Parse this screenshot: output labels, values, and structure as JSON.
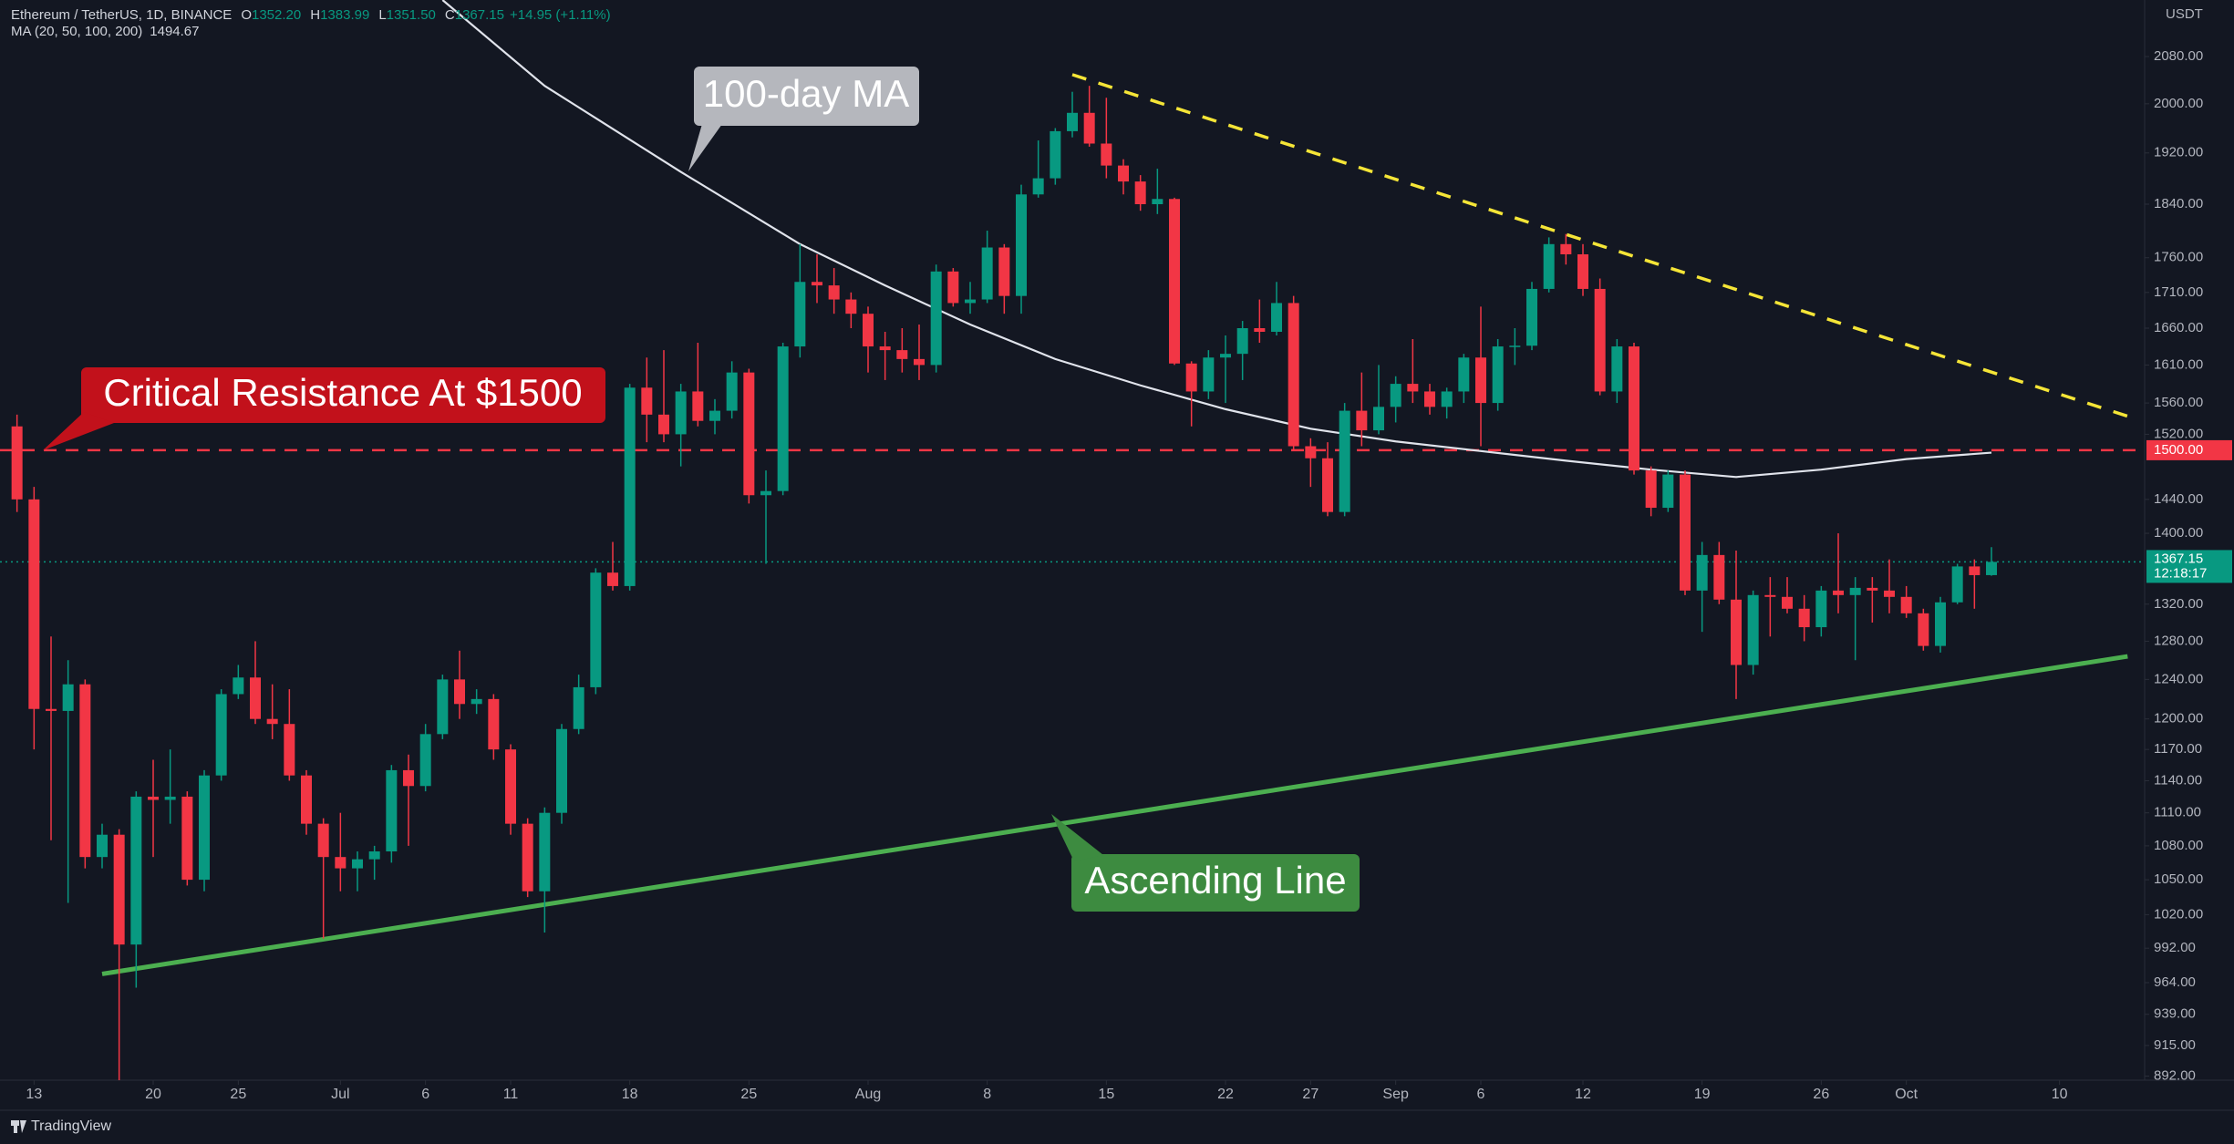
{
  "chart_data": {
    "type": "candlestick",
    "header": {
      "title": "Ethereum / TetherUS, 1D, BINANCE",
      "items": [
        {
          "key": "O",
          "value": "1352.20"
        },
        {
          "key": "H",
          "value": "1383.99"
        },
        {
          "key": "L",
          "value": "1351.50"
        },
        {
          "key": "C",
          "value": "1367.15"
        }
      ],
      "change": "+14.95 (+1.11%)",
      "indicator": "MA (20, 50, 100, 200)",
      "indicator_value": "1494.67"
    },
    "currency": "USDT",
    "footer": "TradingView",
    "up_color": "#089981",
    "down_color": "#f23645",
    "log_scale": true,
    "x": [
      "06-12",
      "06-13",
      "06-14",
      "06-15",
      "06-16",
      "06-17",
      "06-18",
      "06-19",
      "06-20",
      "06-21",
      "06-22",
      "06-23",
      "06-24",
      "06-25",
      "06-26",
      "06-27",
      "06-28",
      "06-29",
      "06-30",
      "07-01",
      "07-02",
      "07-03",
      "07-04",
      "07-05",
      "07-06",
      "07-07",
      "07-08",
      "07-09",
      "07-10",
      "07-11",
      "07-12",
      "07-13",
      "07-14",
      "07-15",
      "07-16",
      "07-17",
      "07-18",
      "07-19",
      "07-20",
      "07-21",
      "07-22",
      "07-23",
      "07-24",
      "07-25",
      "07-26",
      "07-27",
      "07-28",
      "07-29",
      "07-30",
      "07-31",
      "08-01",
      "08-02",
      "08-03",
      "08-04",
      "08-05",
      "08-06",
      "08-07",
      "08-08",
      "08-09",
      "08-10",
      "08-11",
      "08-12",
      "08-13",
      "08-14",
      "08-15",
      "08-16",
      "08-17",
      "08-18",
      "08-19",
      "08-20",
      "08-21",
      "08-22",
      "08-23",
      "08-24",
      "08-25",
      "08-26",
      "08-27",
      "08-28",
      "08-29",
      "08-30",
      "08-31",
      "09-01",
      "09-02",
      "09-03",
      "09-04",
      "09-05",
      "09-06",
      "09-07",
      "09-08",
      "09-09",
      "09-10",
      "09-11",
      "09-12",
      "09-13",
      "09-14",
      "09-15",
      "09-16",
      "09-17",
      "09-18",
      "09-19",
      "09-20",
      "09-21",
      "09-22",
      "09-23",
      "09-24",
      "09-25",
      "09-26",
      "09-27",
      "09-28",
      "09-29",
      "09-30",
      "10-01",
      "10-02",
      "10-03",
      "10-04",
      "10-05",
      "10-06"
    ],
    "open": [
      1530,
      1440,
      1210,
      1208,
      1235,
      1070,
      1090,
      995,
      1125,
      1122,
      1125,
      1050,
      1145,
      1225,
      1242,
      1200,
      1195,
      1145,
      1100,
      1070,
      1060,
      1068,
      1075,
      1150,
      1135,
      1185,
      1240,
      1215,
      1220,
      1170,
      1100,
      1040,
      1110,
      1190,
      1232,
      1355,
      1340,
      1580,
      1545,
      1520,
      1575,
      1537,
      1550,
      1600,
      1445,
      1450,
      1635,
      1725,
      1720,
      1700,
      1680,
      1635,
      1630,
      1618,
      1610,
      1740,
      1695,
      1700,
      1775,
      1705,
      1855,
      1880,
      1955,
      1985,
      1935,
      1900,
      1875,
      1840,
      1848,
      1612,
      1575,
      1620,
      1625,
      1660,
      1655,
      1695,
      1505,
      1490,
      1425,
      1550,
      1525,
      1555,
      1585,
      1575,
      1555,
      1575,
      1620,
      1560,
      1635,
      1636,
      1715,
      1780,
      1765,
      1715,
      1575,
      1635,
      1475,
      1430,
      1470,
      1335,
      1375,
      1325,
      1255,
      1330,
      1328,
      1315,
      1295,
      1335,
      1330,
      1338,
      1335,
      1328,
      1310,
      1275,
      1322,
      1362,
      1352.2
    ],
    "high": [
      1545,
      1455,
      1285,
      1260,
      1240,
      1100,
      1095,
      1130,
      1160,
      1170,
      1130,
      1150,
      1230,
      1255,
      1280,
      1235,
      1230,
      1150,
      1105,
      1110,
      1075,
      1080,
      1155,
      1165,
      1195,
      1245,
      1270,
      1230,
      1225,
      1175,
      1105,
      1115,
      1195,
      1245,
      1360,
      1390,
      1585,
      1620,
      1630,
      1585,
      1640,
      1565,
      1615,
      1605,
      1475,
      1640,
      1780,
      1765,
      1745,
      1710,
      1690,
      1655,
      1660,
      1665,
      1750,
      1745,
      1725,
      1800,
      1780,
      1870,
      1940,
      1960,
      2020,
      2030,
      2010,
      1910,
      1885,
      1895,
      1850,
      1615,
      1630,
      1650,
      1670,
      1700,
      1725,
      1705,
      1515,
      1510,
      1560,
      1600,
      1610,
      1595,
      1645,
      1585,
      1580,
      1625,
      1690,
      1645,
      1660,
      1725,
      1790,
      1795,
      1780,
      1730,
      1645,
      1640,
      1480,
      1475,
      1475,
      1390,
      1390,
      1380,
      1335,
      1350,
      1350,
      1330,
      1340,
      1400,
      1350,
      1350,
      1370,
      1340,
      1315,
      1328,
      1365,
      1370,
      1383.99
    ],
    "low": [
      1425,
      1170,
      1085,
      1030,
      1060,
      1060,
      880,
      960,
      1070,
      1100,
      1045,
      1040,
      1140,
      1220,
      1195,
      1180,
      1140,
      1090,
      1000,
      1040,
      1040,
      1050,
      1065,
      1080,
      1130,
      1180,
      1200,
      1205,
      1160,
      1090,
      1035,
      1005,
      1100,
      1185,
      1225,
      1335,
      1335,
      1510,
      1510,
      1480,
      1530,
      1520,
      1540,
      1435,
      1365,
      1445,
      1620,
      1695,
      1680,
      1660,
      1600,
      1590,
      1600,
      1590,
      1600,
      1690,
      1680,
      1695,
      1680,
      1680,
      1850,
      1870,
      1945,
      1930,
      1880,
      1855,
      1830,
      1825,
      1610,
      1530,
      1565,
      1560,
      1590,
      1640,
      1650,
      1500,
      1455,
      1420,
      1420,
      1505,
      1520,
      1535,
      1560,
      1545,
      1540,
      1560,
      1505,
      1550,
      1610,
      1630,
      1710,
      1750,
      1705,
      1570,
      1560,
      1470,
      1420,
      1425,
      1330,
      1290,
      1320,
      1220,
      1245,
      1285,
      1310,
      1280,
      1285,
      1310,
      1260,
      1300,
      1310,
      1305,
      1270,
      1268,
      1320,
      1315,
      1351.5
    ],
    "close": [
      1440,
      1210,
      1208,
      1235,
      1070,
      1090,
      995,
      1125,
      1122,
      1125,
      1050,
      1145,
      1225,
      1242,
      1200,
      1195,
      1145,
      1100,
      1070,
      1060,
      1068,
      1075,
      1150,
      1135,
      1185,
      1240,
      1215,
      1220,
      1170,
      1100,
      1040,
      1110,
      1190,
      1232,
      1355,
      1340,
      1580,
      1545,
      1520,
      1575,
      1537,
      1550,
      1600,
      1445,
      1450,
      1635,
      1725,
      1720,
      1700,
      1680,
      1635,
      1630,
      1618,
      1610,
      1740,
      1695,
      1700,
      1775,
      1705,
      1855,
      1880,
      1955,
      1985,
      1935,
      1900,
      1875,
      1840,
      1848,
      1612,
      1575,
      1620,
      1625,
      1660,
      1655,
      1695,
      1505,
      1490,
      1425,
      1550,
      1525,
      1555,
      1585,
      1575,
      1555,
      1575,
      1620,
      1560,
      1635,
      1636,
      1715,
      1780,
      1765,
      1715,
      1575,
      1635,
      1475,
      1430,
      1470,
      1335,
      1375,
      1325,
      1255,
      1330,
      1328,
      1315,
      1295,
      1335,
      1330,
      1338,
      1335,
      1328,
      1310,
      1275,
      1322,
      1362,
      1352.2,
      1367.15
    ],
    "last_label": "1367.15",
    "countdown": "12:18:17",
    "ma_line": {
      "color": "#e0e3eb",
      "x": [
        "07-07",
        "07-13",
        "07-21",
        "07-28",
        "08-02",
        "08-07",
        "08-12",
        "08-17",
        "08-22",
        "08-27",
        "09-01",
        "09-06",
        "09-11",
        "09-16",
        "09-21",
        "09-26",
        "10-01",
        "10-06"
      ],
      "values": [
        2180,
        2030,
        1890,
        1780,
        1720,
        1665,
        1618,
        1583,
        1552,
        1527,
        1511,
        1499,
        1487,
        1476,
        1467,
        1476,
        1489,
        1497
      ]
    },
    "resistance_trend": {
      "color": "#f5e537",
      "x": [
        "08-13",
        "10-14"
      ],
      "values": [
        2049,
        1543
      ]
    },
    "support_trend": {
      "color": "#4caf50",
      "x": [
        "06-17",
        "10-14"
      ],
      "values": [
        971,
        1264
      ]
    },
    "resistance": {
      "value": 1500,
      "label": "1500.00",
      "color": "#f23645"
    },
    "annotations": {
      "ma": "100-day MA",
      "resistance": "Critical Resistance At $1500",
      "support": "Ascending Line"
    },
    "xlim": [
      "06-11",
      "10-15"
    ],
    "xticks": [
      {
        "value": "06-13",
        "label": "13"
      },
      {
        "value": "06-20",
        "label": "20"
      },
      {
        "value": "06-25",
        "label": "25"
      },
      {
        "value": "07-01",
        "label": "Jul"
      },
      {
        "value": "07-06",
        "label": "6"
      },
      {
        "value": "07-11",
        "label": "11"
      },
      {
        "value": "07-18",
        "label": "18"
      },
      {
        "value": "07-25",
        "label": "25"
      },
      {
        "value": "08-01",
        "label": "Aug"
      },
      {
        "value": "08-08",
        "label": "8"
      },
      {
        "value": "08-15",
        "label": "15"
      },
      {
        "value": "08-22",
        "label": "22"
      },
      {
        "value": "08-27",
        "label": "27"
      },
      {
        "value": "09-01",
        "label": "Sep"
      },
      {
        "value": "09-06",
        "label": "6"
      },
      {
        "value": "09-12",
        "label": "12"
      },
      {
        "value": "09-19",
        "label": "19"
      },
      {
        "value": "09-26",
        "label": "26"
      },
      {
        "value": "10-01",
        "label": "Oct"
      },
      {
        "value": "10-10",
        "label": "10"
      }
    ],
    "ylim": [
      889,
      2180
    ],
    "yticks": [
      {
        "value": 2080,
        "label": "2080.00"
      },
      {
        "value": 2000,
        "label": "2000.00"
      },
      {
        "value": 1920,
        "label": "1920.00"
      },
      {
        "value": 1840,
        "label": "1840.00"
      },
      {
        "value": 1760,
        "label": "1760.00"
      },
      {
        "value": 1710,
        "label": "1710.00"
      },
      {
        "value": 1660,
        "label": "1660.00"
      },
      {
        "value": 1610,
        "label": "1610.00"
      },
      {
        "value": 1560,
        "label": "1560.00"
      },
      {
        "value": 1520,
        "label": "1520.00"
      },
      {
        "value": 1440,
        "label": "1440.00"
      },
      {
        "value": 1400,
        "label": "1400.00"
      },
      {
        "value": 1320,
        "label": "1320.00"
      },
      {
        "value": 1280,
        "label": "1280.00"
      },
      {
        "value": 1240,
        "label": "1240.00"
      },
      {
        "value": 1200,
        "label": "1200.00"
      },
      {
        "value": 1170,
        "label": "1170.00"
      },
      {
        "value": 1140,
        "label": "1140.00"
      },
      {
        "value": 1110,
        "label": "1110.00"
      },
      {
        "value": 1080,
        "label": "1080.00"
      },
      {
        "value": 1050,
        "label": "1050.00"
      },
      {
        "value": 1020,
        "label": "1020.00"
      },
      {
        "value": 992,
        "label": "992.00"
      },
      {
        "value": 964,
        "label": "964.00"
      },
      {
        "value": 939,
        "label": "939.00"
      },
      {
        "value": 915,
        "label": "915.00"
      },
      {
        "value": 892,
        "label": "892.00"
      }
    ]
  }
}
